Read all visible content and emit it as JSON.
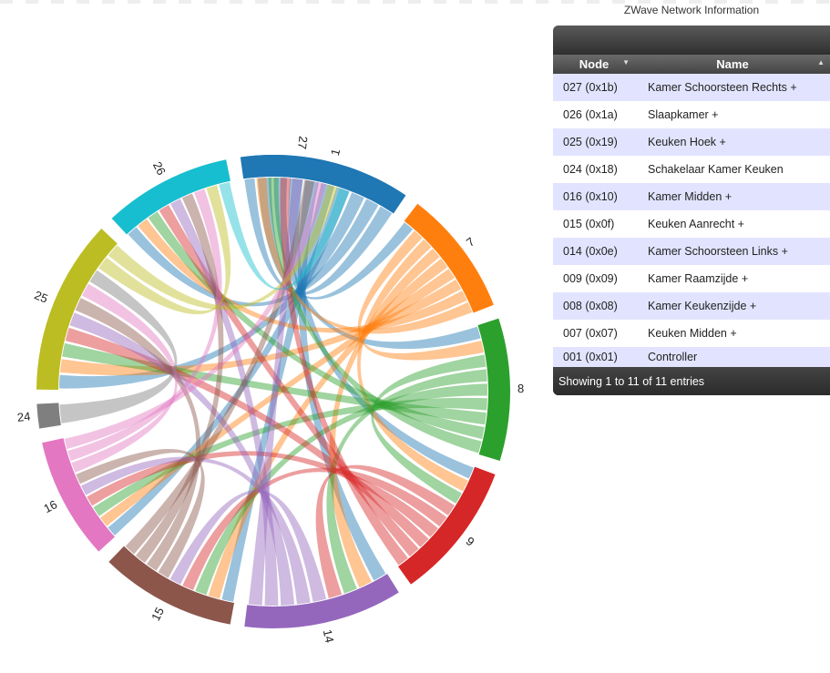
{
  "panel": {
    "title": "ZWave Network Information",
    "columns": {
      "node": "Node",
      "name": "Name"
    },
    "rows": [
      {
        "node": "027 (0x1b)",
        "name": "Kamer Schoorsteen Rechts +"
      },
      {
        "node": "026 (0x1a)",
        "name": "Slaapkamer +"
      },
      {
        "node": "025 (0x19)",
        "name": "Keuken Hoek +"
      },
      {
        "node": "024 (0x18)",
        "name": "Schakelaar Kamer Keuken"
      },
      {
        "node": "016 (0x10)",
        "name": "Kamer Midden +"
      },
      {
        "node": "015 (0x0f)",
        "name": "Keuken Aanrecht +"
      },
      {
        "node": "014 (0x0e)",
        "name": "Kamer Schoorsteen Links +"
      },
      {
        "node": "009 (0x09)",
        "name": "Kamer Raamzijde +"
      },
      {
        "node": "008 (0x08)",
        "name": "Kamer Keukenzijde +"
      },
      {
        "node": "007 (0x07)",
        "name": "Keuken Midden +"
      },
      {
        "node": "001 (0x01)",
        "name": "Controller"
      }
    ],
    "footer": "Showing 1 to 11 of 11 entries"
  },
  "chart_data": {
    "type": "chord",
    "groups": [
      {
        "label": "1",
        "color": "#1f77b4",
        "degrees": 38.5
      },
      {
        "label": "7",
        "color": "#ff7f0e",
        "degrees": 31
      },
      {
        "label": "8",
        "color": "#2ca02c",
        "degrees": 35
      },
      {
        "label": "9",
        "color": "#d62728",
        "degrees": 34
      },
      {
        "label": "14",
        "color": "#9467bd",
        "degrees": 39
      },
      {
        "label": "15",
        "color": "#8c564b",
        "degrees": 33.5
      },
      {
        "label": "16",
        "color": "#e377c2",
        "degrees": 30
      },
      {
        "label": "24",
        "color": "#7f7f7f",
        "degrees": 6
      },
      {
        "label": "25",
        "color": "#bcbd22",
        "degrees": 43
      },
      {
        "label": "26",
        "color": "#17becf",
        "degrees": 31.5
      },
      {
        "label": "27",
        "color": "#1f77b4",
        "degrees": 29
      }
    ],
    "links": [
      [
        "1",
        "7"
      ],
      [
        "1",
        "8"
      ],
      [
        "1",
        "9"
      ],
      [
        "1",
        "14"
      ],
      [
        "1",
        "15"
      ],
      [
        "1",
        "16"
      ],
      [
        "1",
        "25"
      ],
      [
        "1",
        "26"
      ],
      [
        "1",
        "27"
      ],
      [
        "7",
        "8"
      ],
      [
        "7",
        "9"
      ],
      [
        "7",
        "14"
      ],
      [
        "7",
        "15"
      ],
      [
        "7",
        "16"
      ],
      [
        "7",
        "25"
      ],
      [
        "7",
        "26"
      ],
      [
        "7",
        "27"
      ],
      [
        "8",
        "9"
      ],
      [
        "8",
        "14"
      ],
      [
        "8",
        "15"
      ],
      [
        "8",
        "16"
      ],
      [
        "8",
        "25"
      ],
      [
        "8",
        "26"
      ],
      [
        "8",
        "27"
      ],
      [
        "9",
        "14"
      ],
      [
        "9",
        "15"
      ],
      [
        "9",
        "16"
      ],
      [
        "9",
        "25"
      ],
      [
        "9",
        "26"
      ],
      [
        "9",
        "27"
      ],
      [
        "14",
        "15"
      ],
      [
        "14",
        "16"
      ],
      [
        "14",
        "25"
      ],
      [
        "14",
        "26"
      ],
      [
        "14",
        "27"
      ],
      [
        "15",
        "16"
      ],
      [
        "15",
        "25"
      ],
      [
        "15",
        "26"
      ],
      [
        "15",
        "27"
      ],
      [
        "16",
        "25"
      ],
      [
        "16",
        "26"
      ],
      [
        "16",
        "27"
      ],
      [
        "24",
        "25"
      ],
      [
        "25",
        "26"
      ],
      [
        "25",
        "27"
      ],
      [
        "26",
        "27"
      ]
    ]
  }
}
